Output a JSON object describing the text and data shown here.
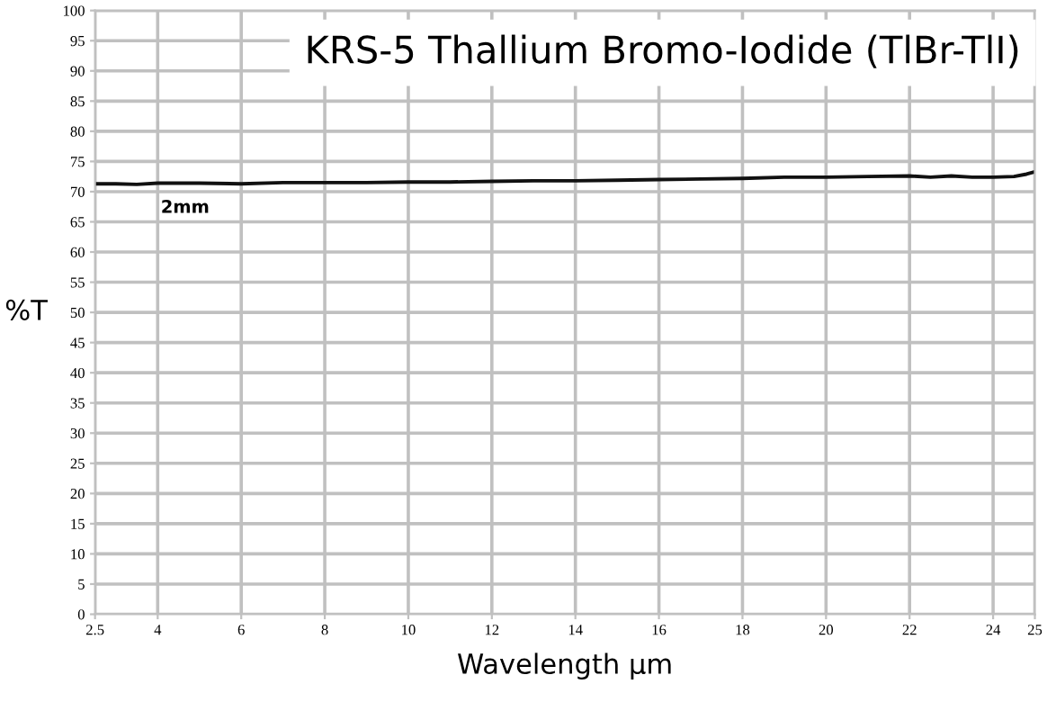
{
  "chart_data": {
    "type": "line",
    "title": "KRS-5 Thallium Bromo-Iodide (TlBr-TlI)",
    "xlabel": "Wavelength µm",
    "ylabel": "%T",
    "annotations": [
      "2mm"
    ],
    "series": [
      {
        "color": "#111111",
        "x": [
          2.5,
          3,
          3.5,
          4,
          5,
          6,
          7,
          8,
          9,
          10,
          11,
          12,
          13,
          14,
          15,
          16,
          17,
          18,
          19,
          20,
          21,
          22,
          22.5,
          23,
          23.5,
          24,
          24.5,
          24.8,
          25
        ],
        "values": [
          71.3,
          71.3,
          71.2,
          71.4,
          71.4,
          71.3,
          71.5,
          71.5,
          71.5,
          71.6,
          71.6,
          71.7,
          71.8,
          71.8,
          71.9,
          72.0,
          72.1,
          72.2,
          72.4,
          72.4,
          72.5,
          72.6,
          72.4,
          72.6,
          72.4,
          72.4,
          72.5,
          72.9,
          73.3
        ]
      }
    ],
    "xlim": [
      2.5,
      25
    ],
    "ylim": [
      0,
      100
    ],
    "xticks": [
      2.5,
      4,
      6,
      8,
      10,
      12,
      14,
      16,
      18,
      20,
      22,
      24,
      25
    ],
    "yticks": [
      0,
      5,
      10,
      15,
      20,
      25,
      30,
      35,
      40,
      45,
      50,
      55,
      60,
      65,
      70,
      75,
      80,
      85,
      90,
      95,
      100
    ],
    "grid": true,
    "legend": false,
    "marker": "none",
    "line_style": "solid"
  }
}
